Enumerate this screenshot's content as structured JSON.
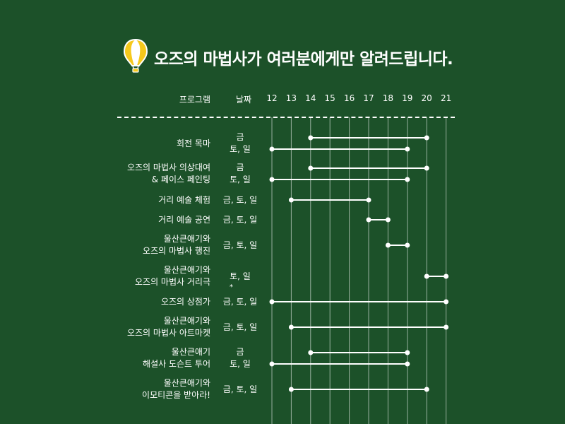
{
  "title": "오즈의 마법사가 여러분에게만 알려드립니다.",
  "header": {
    "program_label": "프로그램",
    "date_label": "날짜"
  },
  "colors": {
    "background": "#1c5129",
    "foreground": "#ffffff",
    "balloon_yellow": "#f6c81c",
    "balloon_white": "#ffffff"
  },
  "icons": {
    "title_icon": "hot-air-balloon-icon"
  },
  "chart_data": {
    "type": "gantt",
    "x": [
      12,
      13,
      14,
      15,
      16,
      17,
      18,
      19,
      20,
      21
    ],
    "xlim": [
      12,
      21
    ],
    "grid": true,
    "rows": [
      {
        "label": [
          "회전 목마"
        ],
        "days": [
          "금",
          "토, 일"
        ],
        "segments": [
          {
            "start": 14,
            "end": 20
          },
          {
            "start": 12,
            "end": 19
          }
        ]
      },
      {
        "label": [
          "오즈의 마법사 의상대여",
          "& 페이스 페인팅"
        ],
        "days": [
          "금",
          "토, 일"
        ],
        "segments": [
          {
            "start": 14,
            "end": 20
          },
          {
            "start": 12,
            "end": 19
          }
        ]
      },
      {
        "label": [
          "거리 예술 체험"
        ],
        "days": [
          "금, 토, 일"
        ],
        "segments": [
          {
            "start": 13,
            "end": 17
          }
        ]
      },
      {
        "label": [
          "거리 예술 공연"
        ],
        "days": [
          "금, 토, 일"
        ],
        "segments": [
          {
            "start": 17,
            "end": 18
          }
        ]
      },
      {
        "label": [
          "울산큰애기와",
          "오즈의 마법사 행진"
        ],
        "days": [
          "금, 토, 일"
        ],
        "segments": [
          {
            "start": 18,
            "end": 19
          }
        ]
      },
      {
        "label": [
          "울산큰애기와",
          "오즈의 마법사 거리극"
        ],
        "days": [
          "토, 일"
        ],
        "note": "*",
        "segments": [
          {
            "start": 20,
            "end": 21
          }
        ]
      },
      {
        "label": [
          "오즈의 상점가"
        ],
        "days": [
          "금, 토, 일"
        ],
        "segments": [
          {
            "start": 12,
            "end": 21
          }
        ]
      },
      {
        "label": [
          "울산큰애기와",
          "오즈의 마법사 아트마켓"
        ],
        "days": [
          "금, 토, 일"
        ],
        "segments": [
          {
            "start": 13,
            "end": 21
          }
        ]
      },
      {
        "label": [
          "울산큰애기",
          "해설사 도슨트 투어"
        ],
        "days": [
          "금",
          "토, 일"
        ],
        "segments": [
          {
            "start": 14,
            "end": 19
          },
          {
            "start": 12,
            "end": 19
          }
        ]
      },
      {
        "label": [
          "울산큰애기와",
          "이모티콘을 받아라!"
        ],
        "days": [
          "금, 토, 일"
        ],
        "segments": [
          {
            "start": 13,
            "end": 20
          }
        ]
      }
    ]
  }
}
